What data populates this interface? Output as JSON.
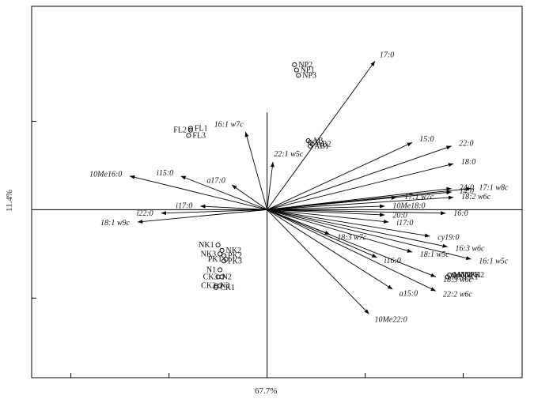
{
  "chart_data": {
    "type": "scatter",
    "subtype": "pca-biplot",
    "xlabel": "67.7%",
    "ylabel": "11.4%",
    "xlim": [
      -1.2,
      1.3
    ],
    "ylim": [
      -0.95,
      1.15
    ],
    "grid": false,
    "vectors": [
      {
        "label": "17:0",
        "x": 0.55,
        "y": 0.84
      },
      {
        "label": "15:0",
        "x": 0.74,
        "y": 0.38
      },
      {
        "label": "22:0",
        "x": 0.94,
        "y": 0.36
      },
      {
        "label": "18:0",
        "x": 0.95,
        "y": 0.26
      },
      {
        "label": "17:1 w8c",
        "x": 1.04,
        "y": 0.12
      },
      {
        "label": "24:0",
        "x": 0.94,
        "y": 0.12
      },
      {
        "label": "14:0",
        "x": 0.94,
        "y": 0.1
      },
      {
        "label": "18:2 w6c",
        "x": 0.95,
        "y": 0.07
      },
      {
        "label": "17:1 w7c",
        "x": 0.66,
        "y": 0.07
      },
      {
        "label": "10Me18:0",
        "x": 0.6,
        "y": 0.02
      },
      {
        "label": "16:0",
        "x": 0.91,
        "y": -0.02
      },
      {
        "label": "20:0",
        "x": 0.6,
        "y": -0.03
      },
      {
        "label": "i17:0",
        "x": 0.62,
        "y": -0.07
      },
      {
        "label": "cy19:0",
        "x": 0.83,
        "y": -0.15
      },
      {
        "label": "16:3 w6c",
        "x": 0.92,
        "y": -0.21
      },
      {
        "label": "18:1 w5c",
        "x": 0.74,
        "y": -0.24
      },
      {
        "label": "16:1 w5c",
        "x": 1.04,
        "y": -0.28
      },
      {
        "label": "i16:0",
        "x": 0.56,
        "y": -0.27
      },
      {
        "label": "18:3 w6c",
        "x": 0.86,
        "y": -0.38
      },
      {
        "label": "22:2 w6c",
        "x": 0.86,
        "y": -0.46
      },
      {
        "label": "18:3 w7c",
        "x": 0.32,
        "y": -0.14
      },
      {
        "label": "a15:0",
        "x": 0.64,
        "y": -0.45
      },
      {
        "label": "10Me22:0",
        "x": 0.52,
        "y": -0.59
      },
      {
        "label": "16:1 w7c",
        "x": -0.11,
        "y": 0.44
      },
      {
        "label": "22:1 w5c",
        "x": 0.03,
        "y": 0.27
      },
      {
        "label": "a17:0",
        "x": -0.18,
        "y": 0.14
      },
      {
        "label": "i15:0",
        "x": -0.44,
        "y": 0.19
      },
      {
        "label": "10Me16:0",
        "x": -0.7,
        "y": 0.19
      },
      {
        "label": "i17:0",
        "x": -0.34,
        "y": 0.02
      },
      {
        "label": "i22:0",
        "x": -0.54,
        "y": -0.02
      },
      {
        "label": "18:1 w9c",
        "x": -0.66,
        "y": -0.07
      }
    ],
    "samples": [
      {
        "label": "NP2",
        "x": 0.14,
        "y": 0.82
      },
      {
        "label": "NP1",
        "x": 0.15,
        "y": 0.79
      },
      {
        "label": "NP3",
        "x": 0.16,
        "y": 0.76
      },
      {
        "label": "AB",
        "x": 0.21,
        "y": 0.39
      },
      {
        "label": "3",
        "x": 0.22,
        "y": 0.38
      },
      {
        "label": "AB2",
        "x": 0.23,
        "y": 0.37
      },
      {
        "label": "AB1",
        "x": 0.22,
        "y": 0.36
      },
      {
        "label": "FL1",
        "x": -0.39,
        "y": 0.46
      },
      {
        "label": "FL2",
        "x": -0.39,
        "y": 0.45
      },
      {
        "label": "FL3",
        "x": -0.4,
        "y": 0.42
      },
      {
        "label": "NK1",
        "x": -0.25,
        "y": -0.2
      },
      {
        "label": "NK2",
        "x": -0.23,
        "y": -0.23
      },
      {
        "label": "NK3",
        "x": -0.24,
        "y": -0.25
      },
      {
        "label": "PK2",
        "x": -0.22,
        "y": -0.26
      },
      {
        "label": "PK1",
        "x": -0.21,
        "y": -0.28
      },
      {
        "label": "PK3",
        "x": -0.22,
        "y": -0.29
      },
      {
        "label": "N1",
        "x": -0.24,
        "y": -0.34
      },
      {
        "label": "N2",
        "x": -0.25,
        "y": -0.38
      },
      {
        "label": "CK3",
        "x": -0.23,
        "y": -0.38
      },
      {
        "label": "N3",
        "x": -0.26,
        "y": -0.43
      },
      {
        "label": "CK2",
        "x": -0.24,
        "y": -0.43
      },
      {
        "label": "CK1",
        "x": -0.26,
        "y": -0.44
      },
      {
        "label": "MNPK3",
        "x": 0.93,
        "y": -0.37
      },
      {
        "label": "MNPK1",
        "x": 0.92,
        "y": -0.38
      },
      {
        "label": "MNPK2",
        "x": 0.95,
        "y": -0.37
      }
    ]
  }
}
